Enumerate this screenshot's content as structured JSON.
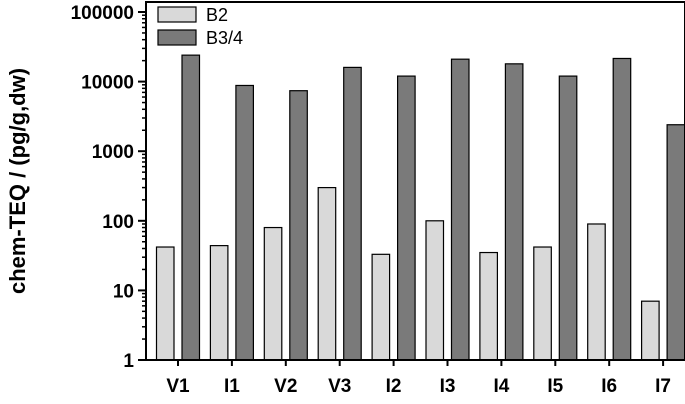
{
  "chart_data": {
    "type": "bar",
    "title": "",
    "xlabel": "",
    "ylabel": "chem-TEQ / (pg/g,dw)",
    "yscale": "log",
    "ylim": [
      1,
      100000
    ],
    "yticks": [
      "1",
      "10",
      "100",
      "1000",
      "10000",
      "100000"
    ],
    "grid": false,
    "legend_position": "top-left",
    "categories": [
      "V1",
      "I1",
      "V2",
      "V3",
      "I2",
      "I3",
      "I4",
      "I5",
      "I6",
      "I7"
    ],
    "series": [
      {
        "name": "B2",
        "color": "#d9d9d9",
        "values": [
          42,
          44,
          80,
          300,
          33,
          100,
          35,
          42,
          90,
          7
        ]
      },
      {
        "name": "B3/4",
        "color": "#7a7a7a",
        "values": [
          24000,
          8800,
          7400,
          16000,
          12000,
          21000,
          18000,
          12000,
          21500,
          2400
        ]
      }
    ]
  }
}
